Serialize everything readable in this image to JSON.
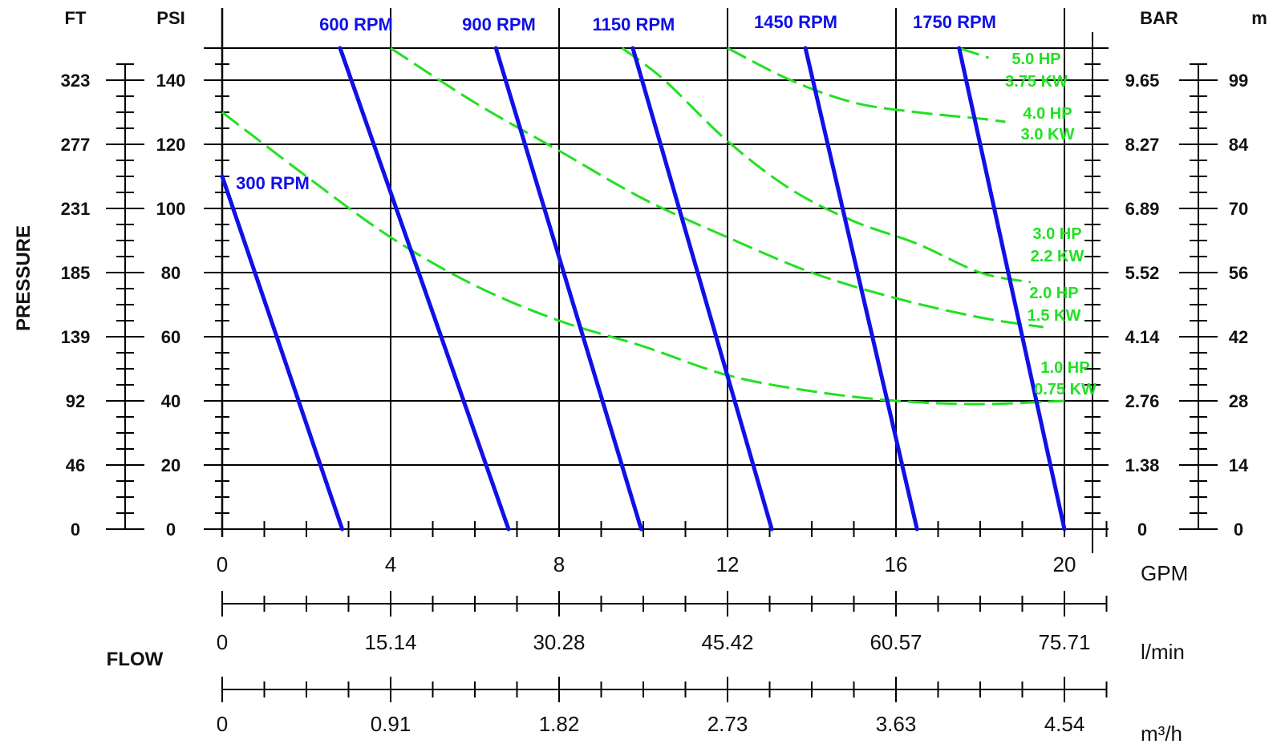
{
  "chart_data": {
    "type": "line",
    "axis_titles": {
      "ft": "FT",
      "psi": "PSI",
      "bar": "BAR",
      "m": "m",
      "pressure": "PRESSURE",
      "flow": "FLOW",
      "gpm": "GPM",
      "lmin": "l/min",
      "m3h": "m³/h"
    },
    "xlim": [
      0,
      21
    ],
    "ylim": [
      0,
      150
    ],
    "grid": true,
    "gpm_ticks": [
      "0",
      "4",
      "8",
      "12",
      "16",
      "20"
    ],
    "lmin_ticks": [
      "0",
      "15.14",
      "30.28",
      "45.42",
      "60.57",
      "75.71"
    ],
    "m3h_ticks": [
      "0",
      "0.91",
      "1.82",
      "2.73",
      "3.63",
      "4.54"
    ],
    "psi_ticks": [
      "0",
      "20",
      "40",
      "60",
      "80",
      "100",
      "120",
      "140"
    ],
    "ft_ticks": [
      "0",
      "46",
      "92",
      "139",
      "185",
      "231",
      "277",
      "323"
    ],
    "bar_ticks": [
      "0",
      "1.38",
      "2.76",
      "4.14",
      "5.52",
      "6.89",
      "8.27",
      "9.65"
    ],
    "m_ticks": [
      "0",
      "14",
      "28",
      "42",
      "56",
      "70",
      "84",
      "99"
    ],
    "rpm_series": [
      {
        "name": "300 RPM",
        "x": [
          0,
          2.85
        ],
        "y": [
          110,
          0
        ]
      },
      {
        "name": "600 RPM",
        "x": [
          2.8,
          6.8
        ],
        "y": [
          150,
          0
        ]
      },
      {
        "name": "900 RPM",
        "x": [
          6.5,
          9.95
        ],
        "y": [
          150,
          0
        ]
      },
      {
        "name": "1150 RPM",
        "x": [
          9.75,
          13.05
        ],
        "y": [
          150,
          0
        ]
      },
      {
        "name": "1450 RPM",
        "x": [
          13.85,
          16.5
        ],
        "y": [
          150,
          0
        ]
      },
      {
        "name": "1750 RPM",
        "x": [
          17.5,
          20.0
        ],
        "y": [
          150,
          0
        ]
      }
    ],
    "power_series": [
      {
        "name": [
          "1.0 HP",
          "0.75 KW"
        ],
        "x": [
          0,
          2,
          4,
          6,
          8,
          10,
          12,
          14,
          16,
          18,
          20
        ],
        "y": [
          130,
          110,
          91,
          76,
          65,
          57,
          48,
          43,
          40,
          39,
          40
        ]
      },
      {
        "name": [
          "2.0 HP",
          "1.5 KW"
        ],
        "x": [
          4,
          6,
          8,
          10,
          12,
          14,
          16,
          18,
          19.5
        ],
        "y": [
          150,
          133,
          118,
          103,
          91,
          80,
          72,
          66,
          63
        ]
      },
      {
        "name": [
          "3.0 HP",
          "2.2 KW"
        ],
        "x": [
          9.5,
          10.5,
          12,
          13.5,
          15,
          16.5,
          18,
          19.2
        ],
        "y": [
          150,
          140,
          121,
          106,
          96,
          89,
          80,
          77
        ]
      },
      {
        "name": [
          "4.0 HP",
          "3.0 KW"
        ],
        "x": [
          12,
          13.5,
          15,
          16.5,
          18,
          18.6
        ],
        "y": [
          150,
          140,
          133,
          130,
          128,
          127
        ]
      },
      {
        "name": [
          "5.0 HP",
          "3.75 KW"
        ],
        "x": [
          17.5,
          18.2
        ],
        "y": [
          150,
          147
        ]
      }
    ],
    "colors": {
      "rpm": "#1010e8",
      "power": "#22e022",
      "grid": "#000000"
    }
  }
}
